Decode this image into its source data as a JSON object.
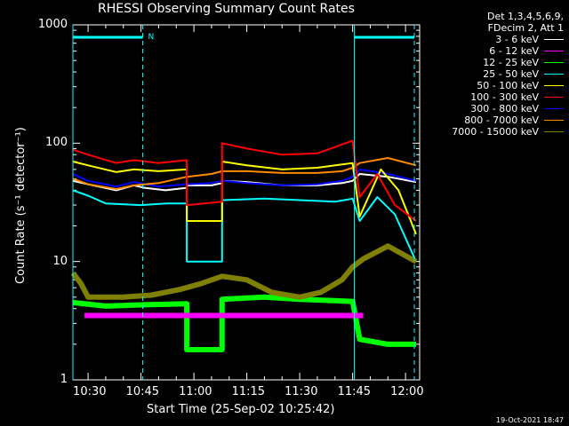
{
  "chart_data": {
    "type": "line",
    "title": "RHESSI Observing Summary Count Rates",
    "xlabel": "Start Time (25-Sep-02 10:25:42)",
    "ylabel": "Count Rate (s⁻¹ detector⁻¹)",
    "y_scale": "log",
    "ylim": [
      1,
      1000
    ],
    "xlim": [
      "10:25:42",
      "12:04:00"
    ],
    "x_ticks": [
      "10:30",
      "10:45",
      "11:00",
      "11:15",
      "11:30",
      "11:45",
      "12:00"
    ],
    "y_ticks": [
      "1",
      "10",
      "100",
      "1000"
    ],
    "annotations": [
      {
        "text": "N",
        "x": "10:45:30"
      }
    ],
    "legend_header": [
      "Det 1,3,4,5,6,9,",
      "FDecim 2, Att 1"
    ],
    "legend_position": "right",
    "series": [
      {
        "name": "3 - 6 keV",
        "color": "#ffffff",
        "points": [
          [
            "10:25:42",
            48
          ],
          [
            "10:30",
            45
          ],
          [
            "10:38",
            40
          ],
          [
            "10:43",
            44
          ],
          [
            "10:46",
            42
          ],
          [
            "10:52",
            40
          ],
          [
            "10:58",
            42
          ],
          [
            "10:58",
            44
          ],
          [
            "11:05",
            44
          ],
          [
            "11:08",
            46
          ],
          [
            "11:08",
            48
          ],
          [
            "11:15",
            47
          ],
          [
            "11:25",
            44
          ],
          [
            "11:35",
            44
          ],
          [
            "11:42",
            46
          ],
          [
            "11:45",
            48
          ],
          [
            "11:47",
            55
          ],
          [
            "11:55",
            52
          ],
          [
            "12:03",
            47
          ]
        ]
      },
      {
        "name": "6 - 12 keV",
        "color": "#ff00ff",
        "points": [
          [
            "10:29",
            3.5
          ],
          [
            "10:40",
            3.5
          ],
          [
            "10:50",
            3.5
          ],
          [
            "11:00",
            3.5
          ],
          [
            "11:10",
            3.5
          ],
          [
            "11:20",
            3.5
          ],
          [
            "11:30",
            3.5
          ],
          [
            "11:40",
            3.5
          ],
          [
            "11:48",
            3.5
          ]
        ]
      },
      {
        "name": "12 - 25 keV",
        "color": "#00ff00",
        "points": [
          [
            "10:25:42",
            4.5
          ],
          [
            "10:35",
            4.2
          ],
          [
            "10:45",
            4.3
          ],
          [
            "10:58",
            4.4
          ],
          [
            "10:58",
            1.8
          ],
          [
            "11:08",
            1.8
          ],
          [
            "11:08",
            4.8
          ],
          [
            "11:20",
            5.0
          ],
          [
            "11:30",
            4.8
          ],
          [
            "11:45",
            4.6
          ],
          [
            "11:47",
            2.2
          ],
          [
            "11:55",
            2.0
          ],
          [
            "12:03",
            2.0
          ]
        ]
      },
      {
        "name": "25 - 50 keV",
        "color": "#00ffff",
        "points": [
          [
            "10:25:42",
            40
          ],
          [
            "10:30",
            36
          ],
          [
            "10:35",
            31
          ],
          [
            "10:45",
            30
          ],
          [
            "10:52",
            31
          ],
          [
            "10:58",
            31
          ],
          [
            "10:58",
            10
          ],
          [
            "11:08",
            10
          ],
          [
            "11:08",
            33
          ],
          [
            "11:20",
            34
          ],
          [
            "11:30",
            33
          ],
          [
            "11:40",
            32
          ],
          [
            "11:45",
            34
          ],
          [
            "11:47",
            22
          ],
          [
            "11:52",
            35
          ],
          [
            "11:57",
            25
          ],
          [
            "12:03",
            10
          ]
        ]
      },
      {
        "name": "50 - 100 keV",
        "color": "#ffff00",
        "points": [
          [
            "10:25:42",
            70
          ],
          [
            "10:30",
            65
          ],
          [
            "10:38",
            57
          ],
          [
            "10:43",
            60
          ],
          [
            "10:50",
            58
          ],
          [
            "10:58",
            60
          ],
          [
            "10:58",
            22
          ],
          [
            "11:08",
            22
          ],
          [
            "11:08",
            70
          ],
          [
            "11:15",
            65
          ],
          [
            "11:25",
            60
          ],
          [
            "11:35",
            62
          ],
          [
            "11:45",
            68
          ],
          [
            "11:47",
            24
          ],
          [
            "11:53",
            60
          ],
          [
            "11:58",
            40
          ],
          [
            "12:03",
            17
          ]
        ]
      },
      {
        "name": "100 - 300 keV",
        "color": "#ff0000",
        "points": [
          [
            "10:25:42",
            88
          ],
          [
            "10:30",
            80
          ],
          [
            "10:38",
            68
          ],
          [
            "10:43",
            72
          ],
          [
            "10:50",
            68
          ],
          [
            "10:58",
            72
          ],
          [
            "10:58",
            30
          ],
          [
            "11:08",
            32
          ],
          [
            "11:08",
            100
          ],
          [
            "11:15",
            90
          ],
          [
            "11:25",
            80
          ],
          [
            "11:35",
            82
          ],
          [
            "11:45",
            105
          ],
          [
            "11:47",
            35
          ],
          [
            "11:52",
            55
          ],
          [
            "11:57",
            30
          ],
          [
            "12:03",
            22
          ]
        ]
      },
      {
        "name": "300 - 800 keV",
        "color": "#0000ff",
        "points": [
          [
            "10:25:42",
            55
          ],
          [
            "10:30",
            48
          ],
          [
            "10:38",
            43
          ],
          [
            "10:43",
            47
          ],
          [
            "10:50",
            43
          ],
          [
            "10:58",
            45
          ],
          [
            "10:58",
            45
          ],
          [
            "11:05",
            46
          ],
          [
            "11:08",
            48
          ],
          [
            "11:15",
            46
          ],
          [
            "11:25",
            44
          ],
          [
            "11:35",
            45
          ],
          [
            "11:42",
            48
          ],
          [
            "11:45",
            52
          ],
          [
            "11:47",
            60
          ],
          [
            "11:55",
            55
          ],
          [
            "12:03",
            48
          ]
        ]
      },
      {
        "name": "800 - 7000 keV",
        "color": "#ff8c00",
        "points": [
          [
            "10:25:42",
            50
          ],
          [
            "10:30",
            45
          ],
          [
            "10:38",
            41
          ],
          [
            "10:43",
            44
          ],
          [
            "10:50",
            46
          ],
          [
            "10:58",
            52
          ],
          [
            "11:05",
            55
          ],
          [
            "11:08",
            58
          ],
          [
            "11:15",
            58
          ],
          [
            "11:25",
            56
          ],
          [
            "11:35",
            56
          ],
          [
            "11:42",
            58
          ],
          [
            "11:45",
            62
          ],
          [
            "11:47",
            68
          ],
          [
            "11:55",
            75
          ],
          [
            "12:03",
            65
          ]
        ]
      },
      {
        "name": "7000 - 15000 keV",
        "color": "#808000",
        "points": [
          [
            "10:25:42",
            8
          ],
          [
            "10:28",
            6.5
          ],
          [
            "10:30",
            5.0
          ],
          [
            "10:40",
            5.0
          ],
          [
            "10:48",
            5.2
          ],
          [
            "10:56",
            5.8
          ],
          [
            "11:02",
            6.5
          ],
          [
            "11:08",
            7.5
          ],
          [
            "11:15",
            7.0
          ],
          [
            "11:22",
            5.5
          ],
          [
            "11:30",
            5.0
          ],
          [
            "11:36",
            5.5
          ],
          [
            "11:42",
            7.0
          ],
          [
            "11:45",
            9.0
          ],
          [
            "11:48",
            10.5
          ],
          [
            "11:55",
            13.5
          ],
          [
            "12:03",
            10
          ]
        ]
      }
    ],
    "saa_intervals": [
      [
        "10:25:42",
        "10:45:30"
      ],
      [
        "11:45:30",
        "12:02:30"
      ]
    ]
  },
  "footer": {
    "date": "19-Oct-2021 18:47"
  }
}
